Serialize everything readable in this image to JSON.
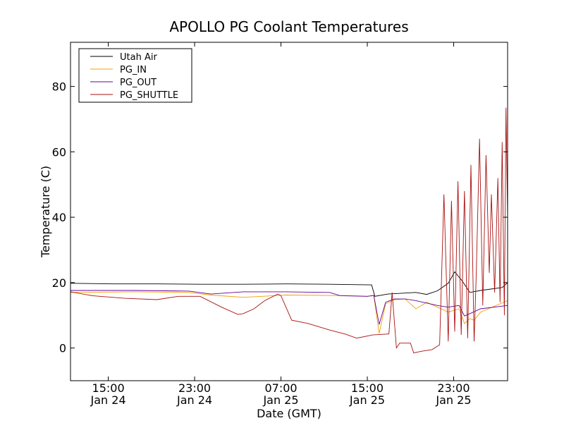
{
  "chart_data": {
    "type": "line",
    "title": "APOLLO PG Coolant Temperatures",
    "xlabel": "Date (GMT)",
    "ylabel": "Temperature (C)",
    "ylim": [
      -10,
      93.5
    ],
    "xlim": [
      0,
      40.5
    ],
    "x_unit": "hours since Jan 24 11:30 GMT",
    "yticks": [
      0,
      20,
      40,
      60,
      80
    ],
    "xticks": [
      {
        "value": 3.5,
        "time": "15:00",
        "date": "Jan 24"
      },
      {
        "value": 11.5,
        "time": "23:00",
        "date": "Jan 24"
      },
      {
        "value": 19.5,
        "time": "07:00",
        "date": "Jan 25"
      },
      {
        "value": 27.5,
        "time": "15:00",
        "date": "Jan 25"
      },
      {
        "value": 35.5,
        "time": "23:00",
        "date": "Jan 25"
      }
    ],
    "legend_position": "top-left",
    "series": [
      {
        "name": "Utah Air",
        "color": "#000000",
        "points": [
          [
            0,
            19.8
          ],
          [
            4,
            19.6
          ],
          [
            8,
            19.6
          ],
          [
            12,
            19.5
          ],
          [
            16,
            19.5
          ],
          [
            20,
            19.6
          ],
          [
            24,
            19.5
          ],
          [
            27.9,
            19.3
          ],
          [
            28.2,
            15.8
          ],
          [
            29.4,
            16.5
          ],
          [
            30,
            16.6
          ],
          [
            31,
            16.8
          ],
          [
            32,
            17.0
          ],
          [
            33,
            16.4
          ],
          [
            34,
            17.5
          ],
          [
            35,
            19.8
          ],
          [
            35.6,
            23.3
          ],
          [
            36.3,
            20.5
          ],
          [
            36.5,
            19.5
          ],
          [
            37,
            17.0
          ],
          [
            38,
            17.6
          ],
          [
            40,
            18.5
          ],
          [
            40.5,
            20.0
          ]
        ]
      },
      {
        "name": "PG_IN",
        "color": "#f0a000",
        "points": [
          [
            0,
            17.0
          ],
          [
            6,
            17.2
          ],
          [
            11,
            17.0
          ],
          [
            13,
            16.2
          ],
          [
            16,
            15.5
          ],
          [
            20,
            16.2
          ],
          [
            26,
            16.0
          ],
          [
            27.5,
            15.8
          ],
          [
            28.1,
            16.0
          ],
          [
            28.6,
            4.5
          ],
          [
            29.2,
            13.5
          ],
          [
            30,
            14.8
          ],
          [
            31,
            15.0
          ],
          [
            32,
            12.0
          ],
          [
            33,
            14.0
          ],
          [
            34,
            12.5
          ],
          [
            35,
            11.0
          ],
          [
            36,
            12.0
          ],
          [
            36.5,
            7.5
          ],
          [
            37,
            9.0
          ],
          [
            37.4,
            8.5
          ],
          [
            38,
            11.0
          ],
          [
            40.5,
            14.5
          ]
        ]
      },
      {
        "name": "PG_OUT",
        "color": "#660099",
        "points": [
          [
            0,
            17.6
          ],
          [
            6,
            17.6
          ],
          [
            11,
            17.4
          ],
          [
            13,
            16.5
          ],
          [
            16,
            17.2
          ],
          [
            20,
            17.2
          ],
          [
            24,
            17.0
          ],
          [
            25,
            16.0
          ],
          [
            27.5,
            15.8
          ],
          [
            28.1,
            16.1
          ],
          [
            28.6,
            7.2
          ],
          [
            29.2,
            14.0
          ],
          [
            30,
            15.0
          ],
          [
            31,
            15.0
          ],
          [
            32,
            14.5
          ],
          [
            34,
            13.0
          ],
          [
            35,
            12.5
          ],
          [
            36,
            13.0
          ],
          [
            36.5,
            9.8
          ],
          [
            37,
            10.5
          ],
          [
            38,
            12.0
          ],
          [
            40.5,
            13.0
          ]
        ]
      },
      {
        "name": "PG_SHUTTLE",
        "color": "#aa1111",
        "points": [
          [
            0,
            17.2
          ],
          [
            2,
            16.0
          ],
          [
            5,
            15.2
          ],
          [
            8,
            14.8
          ],
          [
            10,
            15.8
          ],
          [
            12,
            15.8
          ],
          [
            14,
            12.5
          ],
          [
            15.5,
            10.3
          ],
          [
            16,
            10.5
          ],
          [
            17,
            12.0
          ],
          [
            18,
            14.5
          ],
          [
            19.2,
            16.5
          ],
          [
            19.5,
            16.0
          ],
          [
            20.5,
            8.5
          ],
          [
            22,
            7.5
          ],
          [
            24,
            5.5
          ],
          [
            25.5,
            4.2
          ],
          [
            26.5,
            3.0
          ],
          [
            28,
            4.0
          ],
          [
            29.5,
            4.3
          ],
          [
            29.8,
            17.0
          ],
          [
            30.2,
            0.0
          ],
          [
            30.5,
            1.5
          ],
          [
            31.5,
            1.5
          ],
          [
            31.8,
            -1.5
          ],
          [
            32.5,
            -1.0
          ],
          [
            33.5,
            -0.5
          ],
          [
            34.2,
            1.0
          ],
          [
            34.6,
            47.0
          ],
          [
            35,
            2.0
          ],
          [
            35.3,
            45.0
          ],
          [
            35.6,
            5.0
          ],
          [
            35.9,
            51.0
          ],
          [
            36.2,
            4.0
          ],
          [
            36.5,
            48.0
          ],
          [
            36.8,
            3.0
          ],
          [
            37.1,
            56.0
          ],
          [
            37.4,
            2.0
          ],
          [
            37.6,
            23.0
          ],
          [
            37.9,
            64.0
          ],
          [
            38.2,
            13.0
          ],
          [
            38.5,
            59.0
          ],
          [
            38.8,
            23.0
          ],
          [
            39.0,
            47.0
          ],
          [
            39.3,
            17.0
          ],
          [
            39.6,
            52.0
          ],
          [
            39.8,
            14.0
          ],
          [
            40.0,
            63.0
          ],
          [
            40.2,
            10.0
          ],
          [
            40.35,
            73.5
          ],
          [
            40.5,
            40.0
          ]
        ]
      }
    ]
  }
}
